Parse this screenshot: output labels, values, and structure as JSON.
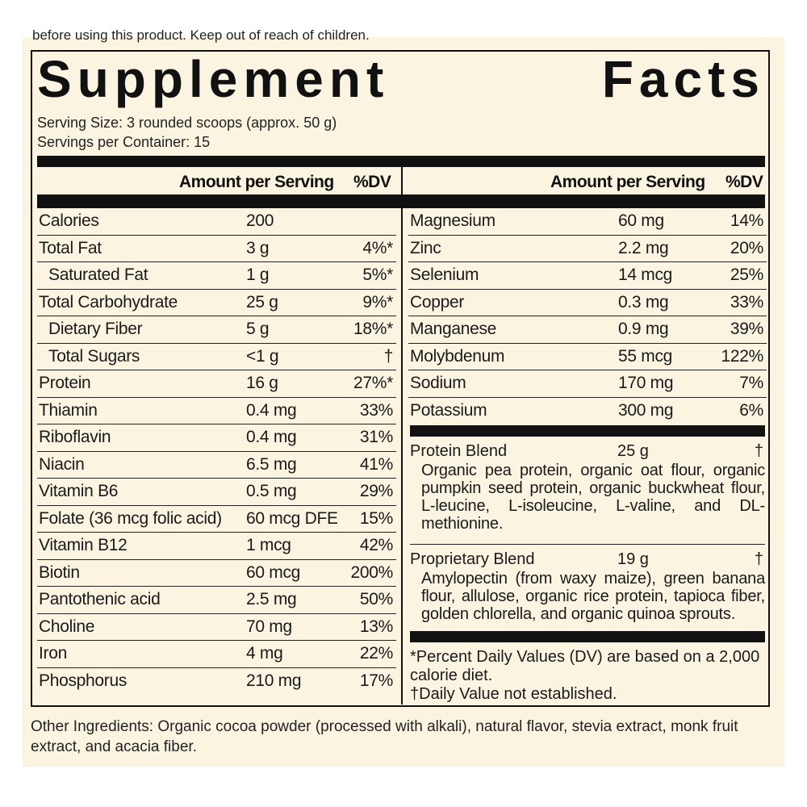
{
  "top_text": "before using this product. Keep out of reach of children.",
  "title": {
    "word1": "Supplement",
    "word2": "Facts"
  },
  "serving_size": "Serving Size: 3 rounded scoops (approx. 50 g)",
  "servings_per_container": "Servings per Container: 15",
  "column_headers": {
    "amount": "Amount per Serving",
    "dv": "%DV"
  },
  "left_rows": [
    {
      "name": "Calories",
      "amount": "200",
      "dv": ""
    },
    {
      "name": "Total Fat",
      "amount": "3 g",
      "dv": "4%*"
    },
    {
      "name": "Saturated Fat",
      "amount": "1 g",
      "dv": "5%*"
    },
    {
      "name": "Total Carbohydrate",
      "amount": "25 g",
      "dv": "9%*"
    },
    {
      "name": "Dietary Fiber",
      "amount": "5 g",
      "dv": "18%*"
    },
    {
      "name": "Total Sugars",
      "amount": "<1 g",
      "dv": "†"
    },
    {
      "name": "Protein",
      "amount": "16 g",
      "dv": "27%*"
    },
    {
      "name": "Thiamin",
      "amount": "0.4 mg",
      "dv": "33%"
    },
    {
      "name": "Riboflavin",
      "amount": "0.4 mg",
      "dv": "31%"
    },
    {
      "name": "Niacin",
      "amount": "6.5 mg",
      "dv": "41%"
    },
    {
      "name": "Vitamin B6",
      "amount": "0.5 mg",
      "dv": "29%"
    },
    {
      "name": "Folate (36 mcg folic acid)",
      "amount": "60 mcg DFE",
      "dv": "15%"
    },
    {
      "name": "Vitamin B12",
      "amount": "1 mcg",
      "dv": "42%"
    },
    {
      "name": "Biotin",
      "amount": "60 mcg",
      "dv": "200%"
    },
    {
      "name": "Pantothenic acid",
      "amount": "2.5 mg",
      "dv": "50%"
    },
    {
      "name": "Choline",
      "amount": "70 mg",
      "dv": "13%"
    },
    {
      "name": "Iron",
      "amount": "4 mg",
      "dv": "22%"
    },
    {
      "name": "Phosphorus",
      "amount": "210 mg",
      "dv": "17%"
    }
  ],
  "right_rows": [
    {
      "name": "Magnesium",
      "amount": "60 mg",
      "dv": "14%"
    },
    {
      "name": "Zinc",
      "amount": "2.2 mg",
      "dv": "20%"
    },
    {
      "name": "Selenium",
      "amount": "14 mcg",
      "dv": "25%"
    },
    {
      "name": "Copper",
      "amount": "0.3 mg",
      "dv": "33%"
    },
    {
      "name": "Manganese",
      "amount": "0.9 mg",
      "dv": "39%"
    },
    {
      "name": "Molybdenum",
      "amount": "55 mcg",
      "dv": "122%"
    },
    {
      "name": "Sodium",
      "amount": "170 mg",
      "dv": "7%"
    },
    {
      "name": "Potassium",
      "amount": "300 mg",
      "dv": "6%"
    }
  ],
  "protein_blend": {
    "name": "Protein Blend",
    "amount": "25 g",
    "dv": "†",
    "ingredients": "Organic pea protein, organic oat flour, organic pumpkin seed protein, organic buckwheat flour, L-leucine, L-isoleucine, L-valine, and DL-methionine."
  },
  "proprietary_blend": {
    "name": "Proprietary Blend",
    "amount": "19 g",
    "dv": "†",
    "ingredients": "Amylopectin (from waxy maize), green banana flour, allulose, organic rice protein, tapioca fiber, golden chlorella, and organic quinoa sprouts."
  },
  "footnote_dv": "*Percent Daily Values (DV) are based on a 2,000 calorie diet.",
  "footnote_dagger": "†Daily Value not established.",
  "other_ingredients": "Other Ingredients: Organic cocoa powder (processed with alkali), natural flavor, stevia extract, monk fruit extract, and acacia fiber."
}
